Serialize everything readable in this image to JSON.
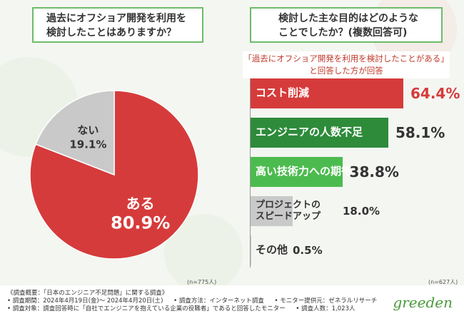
{
  "left_question": [
    "過去にオフショア開発を利用を",
    "検討したことはありますか？"
  ],
  "right_question": [
    "検討した主な目的はどのような",
    "ことでしたか？(複数回答可)"
  ],
  "right_subtitle": [
    "「過去にオフショア開発を利用を検討したことがある」",
    "と回答した方が回答"
  ],
  "left_n": "(n=775人)",
  "right_n": "(n=627人)",
  "logo": "greeden",
  "footer": {
    "line1": "《調査概要：「日本のエンジニア不足問題」に関する調査》",
    "line2a": "• 調査期間：2024年4月19日(金)～ 2024年4月20日(土)",
    "line2b": "• 調査方法：インターネット調査",
    "line2c": "• モニター提供元：ゼネラルリサーチ",
    "line3a": "• 調査対象：調査回答時に「自社でエンジニアを抱えている企業の役職者」であると回答したモニター",
    "line3b": "• 調査人数：1,023人"
  },
  "colors": {
    "red": "#d63b3b",
    "dark_green": "#2e8b3a",
    "light_green": "#4cbb4f",
    "gray": "#c9c9c9",
    "frame_green": "#6dbb6a"
  },
  "chart_data": [
    {
      "type": "pie",
      "labels": [
        "ある",
        "ない"
      ],
      "values": [
        80.9,
        19.1
      ],
      "value_labels": [
        "80.9%",
        "19.1%"
      ],
      "colors": [
        "#d63b3b",
        "#c9c9c9"
      ]
    },
    {
      "type": "bar",
      "orientation": "horizontal",
      "categories": [
        "コスト削減",
        "エンジニアの人数不足",
        "高い技術力への期待",
        "プロジェクトのスピードアップ",
        "その他"
      ],
      "category_lines": [
        [
          "コスト削減"
        ],
        [
          "エンジニアの人数不足"
        ],
        [
          "高い技術力への期待"
        ],
        [
          "プロジェクトの",
          "スピードアップ"
        ],
        [
          "その他"
        ]
      ],
      "values": [
        64.4,
        58.1,
        38.8,
        18.0,
        0.5
      ],
      "value_labels": [
        "64.4%",
        "58.1%",
        "38.8%",
        "18.0%",
        "0.5%"
      ],
      "colors": [
        "#d63b3b",
        "#2e8b3a",
        "#4cbb4f",
        "#c9c9c9",
        "#c9c9c9"
      ]
    }
  ]
}
